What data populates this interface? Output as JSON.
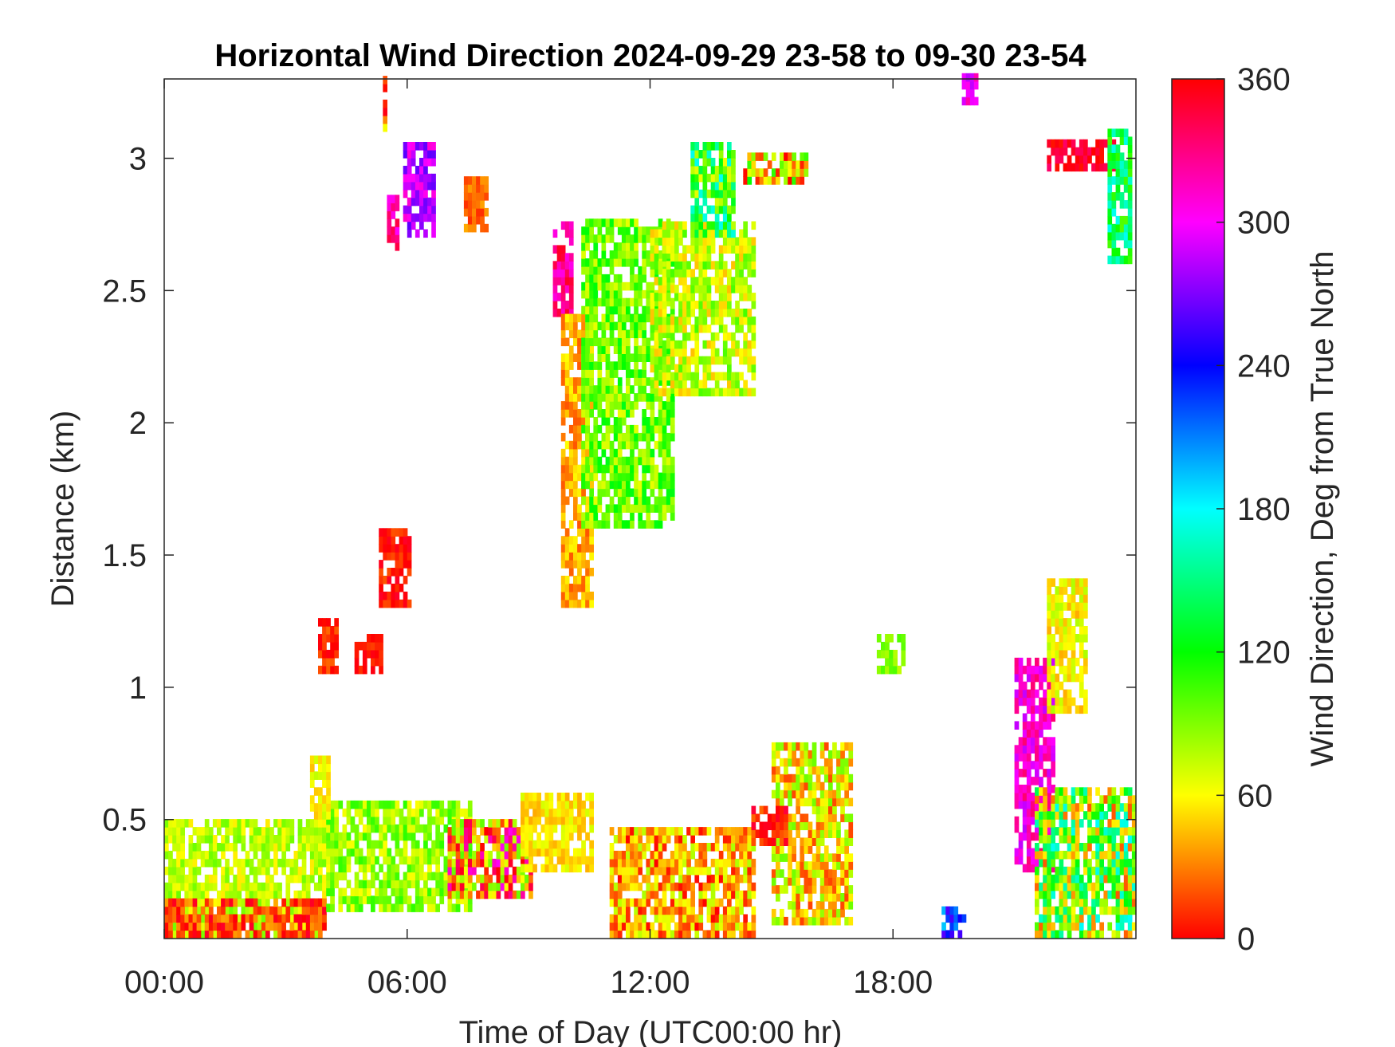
{
  "chart_data": {
    "type": "heatmap",
    "title": "Horizontal Wind Direction 2024-09-29 23-58 to 09-30 23-54",
    "xlabel": "Time of Day (UTC00:00 hr)",
    "ylabel": "Distance (km)",
    "x_unit": "hours",
    "xlim": [
      0,
      24
    ],
    "ylim": [
      0.05,
      3.3
    ],
    "x_ticks": [
      {
        "value": 0,
        "label": "00:00"
      },
      {
        "value": 6,
        "label": "06:00"
      },
      {
        "value": 12,
        "label": "12:00"
      },
      {
        "value": 18,
        "label": "18:00"
      }
    ],
    "y_ticks": [
      {
        "value": 0.5,
        "label": "0.5"
      },
      {
        "value": 1,
        "label": "1"
      },
      {
        "value": 1.5,
        "label": "1.5"
      },
      {
        "value": 2,
        "label": "2"
      },
      {
        "value": 2.5,
        "label": "2.5"
      },
      {
        "value": 3,
        "label": "3"
      }
    ],
    "colorbar": {
      "label": "Wind Direction, Deg from True North",
      "range": [
        0,
        360
      ],
      "ticks": [
        {
          "value": 0,
          "label": "0"
        },
        {
          "value": 60,
          "label": "60"
        },
        {
          "value": 120,
          "label": "120"
        },
        {
          "value": 180,
          "label": "180"
        },
        {
          "value": 240,
          "label": "240"
        },
        {
          "value": 300,
          "label": "300"
        },
        {
          "value": 360,
          "label": "360"
        }
      ],
      "colormap": [
        "#ff0000",
        "#ffff00",
        "#00ff00",
        "#00ffff",
        "#0000ff",
        "#ff00ff",
        "#ff0000"
      ]
    },
    "grid": false,
    "regions": [
      {
        "x": [
          0.0,
          4.0
        ],
        "y": [
          0.05,
          0.5
        ],
        "dir": 75,
        "spread": 20
      },
      {
        "x": [
          0.0,
          4.0
        ],
        "y": [
          0.05,
          0.2
        ],
        "dir": 15,
        "spread": 25
      },
      {
        "x": [
          4.0,
          7.5
        ],
        "y": [
          0.15,
          0.55
        ],
        "dir": 85,
        "spread": 25
      },
      {
        "x": [
          3.6,
          4.1
        ],
        "y": [
          0.5,
          0.72
        ],
        "dir": 60,
        "spread": 15
      },
      {
        "x": [
          7.0,
          9.0
        ],
        "y": [
          0.2,
          0.5
        ],
        "dir": 20,
        "spread": 80
      },
      {
        "x": [
          8.8,
          10.5
        ],
        "y": [
          0.3,
          0.6
        ],
        "dir": 55,
        "spread": 15
      },
      {
        "x": [
          3.8,
          4.2
        ],
        "y": [
          1.05,
          1.25
        ],
        "dir": 10,
        "spread": 15
      },
      {
        "x": [
          4.7,
          5.3
        ],
        "y": [
          1.05,
          1.2
        ],
        "dir": 5,
        "spread": 10
      },
      {
        "x": [
          5.3,
          6.0
        ],
        "y": [
          1.3,
          1.6
        ],
        "dir": 5,
        "spread": 15
      },
      {
        "x": [
          5.4,
          5.5
        ],
        "y": [
          3.1,
          3.3
        ],
        "dir": 25,
        "spread": 40
      },
      {
        "x": [
          5.5,
          5.7
        ],
        "y": [
          2.65,
          2.85
        ],
        "dir": 320,
        "spread": 25
      },
      {
        "x": [
          5.9,
          6.6
        ],
        "y": [
          2.7,
          3.05
        ],
        "dir": 285,
        "spread": 25
      },
      {
        "x": [
          7.4,
          7.9
        ],
        "y": [
          2.72,
          2.9
        ],
        "dir": 25,
        "spread": 15
      },
      {
        "x": [
          9.6,
          10.0
        ],
        "y": [
          2.4,
          2.75
        ],
        "dir": 330,
        "spread": 25
      },
      {
        "x": [
          9.8,
          10.5
        ],
        "y": [
          1.3,
          2.4
        ],
        "dir": 40,
        "spread": 20
      },
      {
        "x": [
          10.3,
          12.5
        ],
        "y": [
          1.6,
          2.75
        ],
        "dir": 95,
        "spread": 30
      },
      {
        "x": [
          12.0,
          14.5
        ],
        "y": [
          2.1,
          2.75
        ],
        "dir": 75,
        "spread": 30
      },
      {
        "x": [
          13.0,
          14.0
        ],
        "y": [
          2.7,
          3.05
        ],
        "dir": 120,
        "spread": 60
      },
      {
        "x": [
          14.3,
          15.8
        ],
        "y": [
          2.9,
          3.0
        ],
        "dir": 60,
        "spread": 60
      },
      {
        "x": [
          11.0,
          14.5
        ],
        "y": [
          0.05,
          0.45
        ],
        "dir": 40,
        "spread": 40
      },
      {
        "x": [
          15.0,
          17.0
        ],
        "y": [
          0.1,
          0.78
        ],
        "dir": 55,
        "spread": 40
      },
      {
        "x": [
          14.5,
          15.3
        ],
        "y": [
          0.4,
          0.55
        ],
        "dir": 5,
        "spread": 20
      },
      {
        "x": [
          17.6,
          18.3
        ],
        "y": [
          1.05,
          1.2
        ],
        "dir": 90,
        "spread": 15
      },
      {
        "x": [
          21.0,
          22.0
        ],
        "y": [
          0.3,
          1.1
        ],
        "dir": 310,
        "spread": 25
      },
      {
        "x": [
          21.5,
          24.0
        ],
        "y": [
          0.05,
          0.6
        ],
        "dir": 100,
        "spread": 80
      },
      {
        "x": [
          21.8,
          22.8
        ],
        "y": [
          0.9,
          1.4
        ],
        "dir": 60,
        "spread": 20
      },
      {
        "x": [
          21.8,
          23.5
        ],
        "y": [
          2.95,
          3.05
        ],
        "dir": 350,
        "spread": 15
      },
      {
        "x": [
          23.3,
          23.9
        ],
        "y": [
          2.6,
          3.1
        ],
        "dir": 140,
        "spread": 40
      },
      {
        "x": [
          19.7,
          20.1
        ],
        "y": [
          3.2,
          3.3
        ],
        "dir": 300,
        "spread": 20
      },
      {
        "x": [
          19.2,
          19.8
        ],
        "y": [
          0.05,
          0.15
        ],
        "dir": 230,
        "spread": 40
      }
    ]
  }
}
